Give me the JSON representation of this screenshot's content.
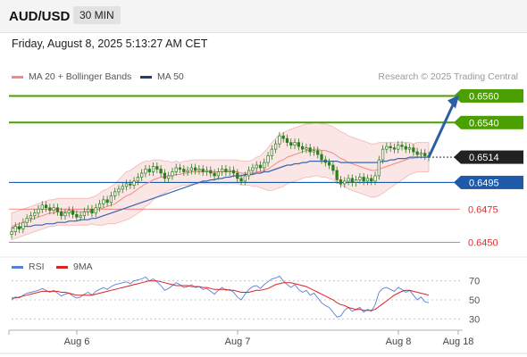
{
  "header": {
    "pair": "AUD/USD",
    "timeframe": "30 MIN"
  },
  "datetime": "Friday, August 8, 2025 5:13:27 AM CET",
  "legend": {
    "bb_label": "MA 20 + Bollinger Bands",
    "ma50_label": "MA 50",
    "rsi_label": "RSI",
    "rsi_ma_label": "9MA"
  },
  "credit": "Research © 2025 Trading Central",
  "colors": {
    "green": "#4aa000",
    "blue": "#1f5aa8",
    "red": "#e03030",
    "bb": "#f08a8a",
    "ma50": "#3a64b0",
    "candle": "#2e7d1f",
    "rsi": "#5a7fd6",
    "rsi_ma": "#dd2222",
    "arrow": "#2a5fa8"
  },
  "chart_data": [
    {
      "type": "line",
      "name": "price",
      "levels": [
        {
          "value": 0.656,
          "label": "0.6560",
          "kind": "resistance"
        },
        {
          "value": 0.654,
          "label": "0.6540",
          "kind": "resistance"
        },
        {
          "value": 0.6514,
          "label": "0.6514",
          "kind": "current"
        },
        {
          "value": 0.6495,
          "label": "0.6495",
          "kind": "pivot"
        },
        {
          "value": 0.6475,
          "label": "0.6475",
          "kind": "support"
        },
        {
          "value": 0.645,
          "label": "0.6450",
          "kind": "support"
        }
      ],
      "x_ticks": [
        "Aug 6",
        "Aug 7",
        "Aug 8",
        "Aug 18"
      ],
      "ylim": [
        0.6441,
        0.6565
      ],
      "close": [
        0.6458,
        0.6462,
        0.646,
        0.6465,
        0.6468,
        0.647,
        0.6472,
        0.6475,
        0.6478,
        0.6476,
        0.6474,
        0.6476,
        0.6473,
        0.647,
        0.6472,
        0.6474,
        0.6471,
        0.6469,
        0.647,
        0.6473,
        0.6475,
        0.6472,
        0.6476,
        0.6479,
        0.6482,
        0.648,
        0.6485,
        0.6488,
        0.649,
        0.6492,
        0.6494,
        0.6493,
        0.6496,
        0.6499,
        0.6502,
        0.6505,
        0.6503,
        0.6507,
        0.6505,
        0.6502,
        0.6498,
        0.65,
        0.6503,
        0.6506,
        0.6505,
        0.6503,
        0.6504,
        0.6506,
        0.6504,
        0.6505,
        0.6503,
        0.6504,
        0.6502,
        0.65,
        0.6503,
        0.6505,
        0.6503,
        0.6504,
        0.6502,
        0.6498,
        0.6496,
        0.65,
        0.6504,
        0.6506,
        0.6508,
        0.6506,
        0.651,
        0.6515,
        0.652,
        0.6524,
        0.653,
        0.6528,
        0.6525,
        0.6523,
        0.6525,
        0.6522,
        0.652,
        0.6521,
        0.6518,
        0.6519,
        0.6516,
        0.6512,
        0.651,
        0.6508,
        0.6504,
        0.6497,
        0.6494,
        0.6496,
        0.6498,
        0.6495,
        0.6497,
        0.6499,
        0.6496,
        0.6498,
        0.6496,
        0.65,
        0.6512,
        0.652,
        0.6522,
        0.6521,
        0.652,
        0.6523,
        0.6522,
        0.652,
        0.6521,
        0.6518,
        0.6516,
        0.6517,
        0.6515,
        0.6514
      ],
      "ma20": [
        0.6462,
        0.6463,
        0.6464,
        0.6465,
        0.6466,
        0.6467,
        0.6468,
        0.6469,
        0.647,
        0.6471,
        0.6472,
        0.6472,
        0.6473,
        0.6473,
        0.6473,
        0.6473,
        0.6473,
        0.6473,
        0.6473,
        0.6473,
        0.6473,
        0.6474,
        0.6474,
        0.6475,
        0.6476,
        0.6477,
        0.6478,
        0.6479,
        0.6481,
        0.6483,
        0.6485,
        0.6486,
        0.6488,
        0.649,
        0.6492,
        0.6494,
        0.6495,
        0.6497,
        0.6498,
        0.6499,
        0.6499,
        0.65,
        0.65,
        0.6501,
        0.6501,
        0.6502,
        0.6502,
        0.6503,
        0.6503,
        0.6503,
        0.6503,
        0.6503,
        0.6503,
        0.6503,
        0.6503,
        0.6503,
        0.6503,
        0.6503,
        0.6503,
        0.6503,
        0.6502,
        0.6502,
        0.6502,
        0.6502,
        0.6503,
        0.6503,
        0.6504,
        0.6505,
        0.6507,
        0.6509,
        0.6511,
        0.6512,
        0.6514,
        0.6515,
        0.6516,
        0.6517,
        0.6518,
        0.6519,
        0.6519,
        0.652,
        0.652,
        0.6519,
        0.6519,
        0.6518,
        0.6517,
        0.6515,
        0.6513,
        0.6512,
        0.651,
        0.6509,
        0.6508,
        0.6507,
        0.6506,
        0.6505,
        0.6504,
        0.6504,
        0.6505,
        0.6506,
        0.6507,
        0.6508,
        0.6509,
        0.651,
        0.6511,
        0.6512,
        0.6513,
        0.6513,
        0.6514,
        0.6514,
        0.6514,
        0.6514
      ],
      "bb_width": [
        0.001,
        0.001,
        0.001,
        0.001,
        0.001,
        0.001,
        0.001,
        0.001,
        0.001,
        0.001,
        0.001,
        0.001,
        0.001,
        0.001,
        0.001,
        0.001,
        0.001,
        0.001,
        0.001,
        0.001,
        0.001,
        0.001,
        0.0011,
        0.0012,
        0.0013,
        0.0013,
        0.0014,
        0.0015,
        0.0016,
        0.0017,
        0.0018,
        0.0018,
        0.0018,
        0.0018,
        0.0018,
        0.0017,
        0.0016,
        0.0015,
        0.0014,
        0.0013,
        0.0012,
        0.0011,
        0.001,
        0.001,
        0.0009,
        0.0009,
        0.0009,
        0.0009,
        0.0009,
        0.0009,
        0.0009,
        0.0009,
        0.0009,
        0.0009,
        0.0009,
        0.0009,
        0.0009,
        0.0009,
        0.0009,
        0.0009,
        0.0009,
        0.0009,
        0.0009,
        0.001,
        0.0011,
        0.0012,
        0.0014,
        0.0016,
        0.0018,
        0.0019,
        0.002,
        0.002,
        0.002,
        0.002,
        0.002,
        0.002,
        0.002,
        0.002,
        0.002,
        0.002,
        0.002,
        0.002,
        0.002,
        0.002,
        0.002,
        0.002,
        0.002,
        0.002,
        0.002,
        0.002,
        0.002,
        0.002,
        0.002,
        0.002,
        0.002,
        0.002,
        0.002,
        0.0019,
        0.0018,
        0.0017,
        0.0016,
        0.0015,
        0.0014,
        0.0013,
        0.0012,
        0.0011,
        0.0011,
        0.0011,
        0.0011,
        0.0011
      ],
      "ma50": [
        0.6461,
        0.6461,
        0.6461,
        0.6462,
        0.6462,
        0.6462,
        0.6463,
        0.6463,
        0.6463,
        0.6464,
        0.6464,
        0.6464,
        0.6465,
        0.6465,
        0.6465,
        0.6466,
        0.6466,
        0.6466,
        0.6467,
        0.6467,
        0.6467,
        0.6468,
        0.6468,
        0.6469,
        0.647,
        0.6471,
        0.6472,
        0.6473,
        0.6474,
        0.6475,
        0.6476,
        0.6477,
        0.6478,
        0.6479,
        0.648,
        0.6481,
        0.6482,
        0.6483,
        0.6484,
        0.6485,
        0.6486,
        0.6487,
        0.6488,
        0.6489,
        0.649,
        0.6491,
        0.6492,
        0.6493,
        0.6494,
        0.6495,
        0.6496,
        0.6496,
        0.6497,
        0.6497,
        0.6498,
        0.6498,
        0.6499,
        0.6499,
        0.65,
        0.65,
        0.65,
        0.6501,
        0.6501,
        0.6501,
        0.6502,
        0.6502,
        0.6503,
        0.6503,
        0.6504,
        0.6505,
        0.6506,
        0.6507,
        0.6508,
        0.6508,
        0.6509,
        0.6509,
        0.651,
        0.651,
        0.6511,
        0.6511,
        0.6511,
        0.6511,
        0.6511,
        0.6511,
        0.6511,
        0.6511,
        0.651,
        0.651,
        0.651,
        0.651,
        0.651,
        0.651,
        0.651,
        0.651,
        0.651,
        0.651,
        0.651,
        0.6511,
        0.6511,
        0.6512,
        0.6512,
        0.6513,
        0.6513,
        0.6513,
        0.6514,
        0.6514,
        0.6514,
        0.6514,
        0.6514,
        0.6514
      ]
    },
    {
      "type": "line",
      "name": "rsi",
      "ylim": [
        20,
        80
      ],
      "ticks": [
        "70",
        "50",
        "30"
      ],
      "rsi": [
        50,
        53,
        52,
        55,
        57,
        58,
        59,
        60,
        62,
        60,
        58,
        60,
        57,
        54,
        56,
        57,
        54,
        52,
        53,
        56,
        58,
        55,
        59,
        61,
        63,
        61,
        64,
        66,
        67,
        68,
        69,
        67,
        70,
        71,
        72,
        74,
        70,
        72,
        69,
        65,
        60,
        62,
        65,
        68,
        66,
        63,
        64,
        66,
        63,
        64,
        61,
        62,
        59,
        56,
        60,
        63,
        60,
        61,
        58,
        53,
        50,
        56,
        61,
        64,
        65,
        62,
        66,
        69,
        72,
        73,
        75,
        70,
        66,
        63,
        66,
        61,
        58,
        60,
        55,
        57,
        52,
        47,
        44,
        42,
        37,
        32,
        33,
        39,
        42,
        38,
        40,
        42,
        37,
        40,
        38,
        45,
        58,
        62,
        63,
        61,
        59,
        63,
        61,
        58,
        60,
        55,
        50,
        53,
        48,
        47
      ],
      "rsi_ma": [
        52,
        52,
        53,
        54,
        55,
        56,
        57,
        58,
        59,
        59,
        59,
        59,
        59,
        58,
        58,
        57,
        56,
        55,
        55,
        55,
        55,
        55,
        56,
        57,
        58,
        59,
        60,
        61,
        62,
        63,
        64,
        65,
        66,
        67,
        68,
        69,
        70,
        70,
        70,
        69,
        68,
        67,
        66,
        65,
        65,
        65,
        65,
        64,
        64,
        64,
        63,
        63,
        62,
        61,
        61,
        61,
        61,
        60,
        60,
        59,
        58,
        58,
        58,
        59,
        60,
        60,
        61,
        62,
        64,
        66,
        67,
        68,
        68,
        68,
        67,
        66,
        65,
        64,
        62,
        60,
        58,
        56,
        54,
        52,
        50,
        47,
        45,
        44,
        42,
        41,
        40,
        40,
        39,
        39,
        39,
        40,
        43,
        46,
        49,
        52,
        55,
        57,
        59,
        60,
        60,
        59,
        58,
        57,
        56,
        55
      ]
    }
  ]
}
